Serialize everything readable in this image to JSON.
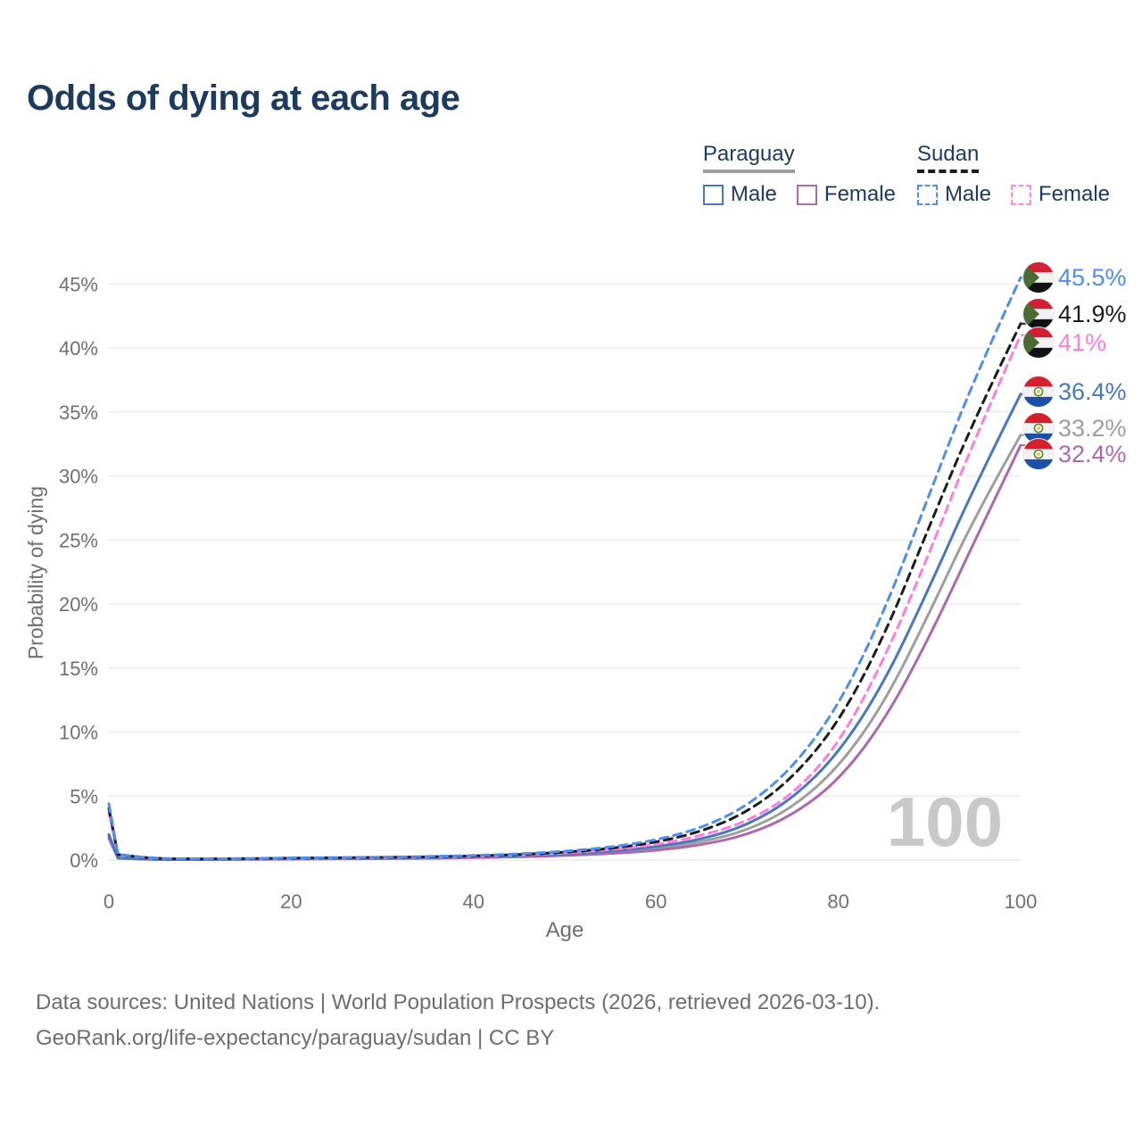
{
  "title": "Odds of dying at each age",
  "watermark_age": "100",
  "legend": {
    "groups": [
      {
        "label": "Paraguay",
        "line_style": "solid",
        "underline_color": "#9e9e9e",
        "items": [
          {
            "label": "Male",
            "color": "#4679bd",
            "style": "solid"
          },
          {
            "label": "Female",
            "color": "#b168b4",
            "style": "solid"
          }
        ]
      },
      {
        "label": "Sudan",
        "line_style": "dashed",
        "underline_color": "#1c1c1c",
        "items": [
          {
            "label": "Male",
            "color": "#4d8ef0",
            "style": "dashed"
          },
          {
            "label": "Female",
            "color": "#ff8ae4",
            "style": "dashed"
          }
        ]
      }
    ]
  },
  "chart_data": {
    "type": "line",
    "title": "Odds of dying at each age",
    "xlabel": "Age",
    "ylabel": "Probability of dying",
    "xlim": [
      0,
      100
    ],
    "ylim": [
      0,
      47
    ],
    "x_ticks": [
      0,
      20,
      40,
      60,
      80,
      100
    ],
    "y_ticks": [
      0,
      5,
      10,
      15,
      20,
      25,
      30,
      35,
      40,
      45
    ],
    "y_tick_suffix": "%",
    "grid": "horizontal",
    "legend_position": "top-right",
    "x": [
      0,
      1,
      5,
      10,
      15,
      20,
      25,
      30,
      35,
      40,
      45,
      50,
      55,
      60,
      65,
      70,
      75,
      80,
      85,
      90,
      95,
      100
    ],
    "series": [
      {
        "name": "Sudan Male",
        "country": "Sudan",
        "sex": "Male",
        "style": "dashed",
        "color": "#4d8ef0",
        "flag": "sudan",
        "end_label": "45.5%",
        "values": [
          4.4,
          0.45,
          0.12,
          0.09,
          0.12,
          0.17,
          0.2,
          0.23,
          0.28,
          0.36,
          0.48,
          0.68,
          1.0,
          1.55,
          2.5,
          4.2,
          7.2,
          12.0,
          19.3,
          28.6,
          37.8,
          45.5
        ]
      },
      {
        "name": "Sudan Both sexes",
        "country": "Sudan",
        "sex": "Both",
        "style": "dashed",
        "color": "#1c1c1c",
        "flag": "sudan",
        "end_label": "41.9%",
        "values": [
          4.05,
          0.42,
          0.11,
          0.085,
          0.11,
          0.15,
          0.18,
          0.21,
          0.25,
          0.32,
          0.43,
          0.61,
          0.9,
          1.38,
          2.22,
          3.72,
          6.4,
          10.7,
          17.4,
          26.1,
          34.6,
          41.9
        ]
      },
      {
        "name": "Sudan Female",
        "country": "Sudan",
        "sex": "Female",
        "style": "dashed",
        "color": "#ff7ce0",
        "flag": "sudan",
        "end_label": "41%",
        "values": [
          3.7,
          0.4,
          0.1,
          0.08,
          0.1,
          0.13,
          0.16,
          0.19,
          0.23,
          0.29,
          0.39,
          0.55,
          0.8,
          1.2,
          1.9,
          3.0,
          5.1,
          9.0,
          15.6,
          24.0,
          33.0,
          41.0
        ]
      },
      {
        "name": "Paraguay Male",
        "country": "Paraguay",
        "sex": "Male",
        "style": "solid",
        "color": "#4679bd",
        "flag": "paraguay",
        "end_label": "36.4%",
        "values": [
          2.0,
          0.16,
          0.05,
          0.04,
          0.08,
          0.13,
          0.15,
          0.17,
          0.2,
          0.25,
          0.33,
          0.47,
          0.68,
          1.02,
          1.62,
          2.7,
          4.8,
          8.3,
          13.8,
          21.3,
          29.3,
          36.4
        ]
      },
      {
        "name": "Paraguay Both sexes",
        "country": "Paraguay",
        "sex": "Both",
        "style": "solid",
        "color": "#9e9e9e",
        "flag": "paraguay",
        "end_label": "33.2%",
        "values": [
          1.85,
          0.15,
          0.045,
          0.037,
          0.065,
          0.1,
          0.12,
          0.14,
          0.17,
          0.21,
          0.29,
          0.41,
          0.59,
          0.88,
          1.4,
          2.3,
          4.1,
          7.2,
          12.2,
          19.3,
          26.9,
          33.2
        ]
      },
      {
        "name": "Paraguay Female",
        "country": "Paraguay",
        "sex": "Female",
        "style": "solid",
        "color": "#ae68b0",
        "flag": "paraguay",
        "end_label": "32.4%",
        "values": [
          1.7,
          0.14,
          0.04,
          0.033,
          0.05,
          0.07,
          0.09,
          0.11,
          0.14,
          0.18,
          0.25,
          0.35,
          0.5,
          0.74,
          1.18,
          1.95,
          3.5,
          6.2,
          10.8,
          17.4,
          25.0,
          32.4
        ]
      }
    ]
  },
  "flag_colors": {
    "sudan": {
      "top": "#d21f34",
      "middle": "#f2f2f2",
      "bottom": "#101114",
      "triangle": "#4a6b32"
    },
    "paraguay": {
      "top": "#d4202c",
      "middle": "#f2f2f2",
      "bottom": "#1b4fa8",
      "emblem_ring": "#5a8a3a",
      "emblem_star": "#e8c428"
    }
  },
  "footer": {
    "line1": "Data sources: United Nations | World Population Prospects (2026, retrieved 2026-03-10).",
    "line2": "GeoRank.org/life-expectancy/paraguay/sudan | CC BY"
  }
}
